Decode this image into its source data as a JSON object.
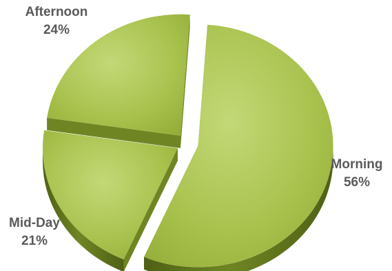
{
  "chart_data": {
    "type": "pie",
    "title": "",
    "exploded": true,
    "three_d": true,
    "legend": "none",
    "slices": [
      {
        "label": "Morning",
        "value": 56,
        "pct_text": "56%"
      },
      {
        "label": "Mid-Day",
        "value": 21,
        "pct_text": "21%"
      },
      {
        "label": "Afternoon",
        "value": 24,
        "pct_text": "24%"
      }
    ],
    "colors": {
      "top": "#a9c24e",
      "top_light": "#c3d877",
      "top_dark": "#93ad38",
      "side": "#6f8523",
      "side_dark": "#4f6015",
      "label": "#5a5a5a"
    }
  }
}
